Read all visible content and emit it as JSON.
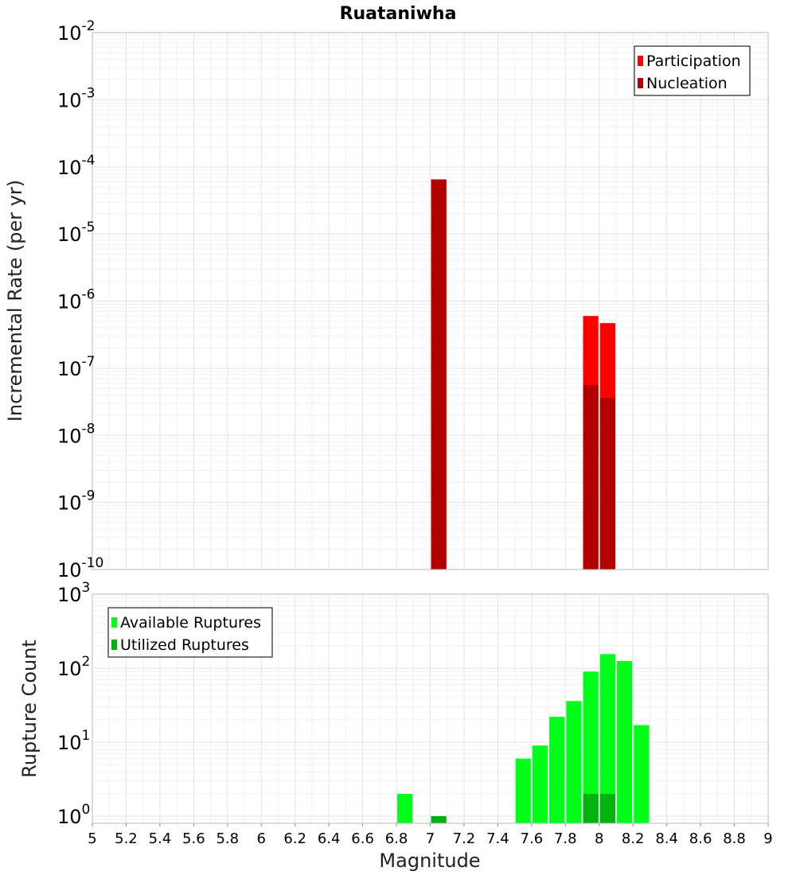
{
  "chart_data": [
    {
      "type": "bar",
      "title": "Ruataniwha",
      "ylabel": "Incremental Rate (per yr)",
      "xlabel": "",
      "yscale": "log",
      "xlim": [
        5,
        9
      ],
      "ylim": [
        1e-10,
        0.01
      ],
      "legend_position": "top-right",
      "bin_width": 0.1,
      "series": [
        {
          "name": "Participation",
          "color": "#ff0000",
          "x": [
            7.05,
            7.95,
            8.05
          ],
          "values": [
            6.5e-05,
            6e-07,
            4.7e-07
          ]
        },
        {
          "name": "Nucleation",
          "color": "#b30000",
          "x": [
            7.05,
            7.95,
            8.05
          ],
          "values": [
            6.5e-05,
            5.6e-08,
            3.6e-08
          ]
        }
      ]
    },
    {
      "type": "bar",
      "title": "",
      "ylabel": "Rupture Count",
      "xlabel": "Magnitude",
      "yscale": "log",
      "xlim": [
        5,
        9
      ],
      "ylim": [
        0.8,
        1000
      ],
      "legend_position": "top-left",
      "bin_width": 0.1,
      "xticks": [
        "5",
        "5.2",
        "5.4",
        "5.6",
        "5.8",
        "6",
        "6.2",
        "6.4",
        "6.6",
        "6.8",
        "7",
        "7.2",
        "7.4",
        "7.6",
        "7.8",
        "8",
        "8.2",
        "8.4",
        "8.6",
        "8.8",
        "9"
      ],
      "series": [
        {
          "name": "Available Ruptures",
          "color": "#00ff19",
          "x": [
            6.85,
            7.55,
            7.65,
            7.75,
            7.85,
            7.95,
            8.05,
            8.15,
            8.25
          ],
          "values": [
            2,
            6,
            9,
            22,
            36,
            90,
            155,
            125,
            17
          ]
        },
        {
          "name": "Utilized Ruptures",
          "color": "#00b30f",
          "x": [
            7.05,
            7.95,
            8.05
          ],
          "values": [
            1,
            2,
            2
          ]
        }
      ]
    }
  ]
}
